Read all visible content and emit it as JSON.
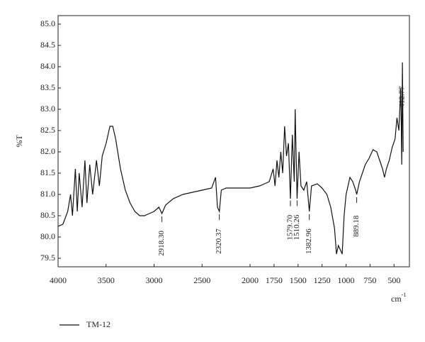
{
  "chart_data": {
    "type": "line",
    "xlabel": "cm",
    "xlabel_sup": "-1",
    "ylabel": "%T",
    "xlim": [
      4000,
      340
    ],
    "ylim": [
      79.3,
      85.2
    ],
    "xticks": [
      4000,
      3500,
      3000,
      2500,
      2000,
      1750,
      1500,
      1250,
      1000,
      750,
      500
    ],
    "yticks": [
      79.5,
      {
        "value": 80,
        "label": "80.0"
      },
      80.5,
      {
        "value": 81,
        "label": "81.0"
      },
      81.5,
      {
        "value": 82,
        "label": "82.0"
      },
      82.5,
      {
        "value": 83,
        "label": "83.0"
      },
      83.5,
      {
        "value": 84,
        "label": "84.0"
      },
      84.5,
      {
        "value": 85,
        "label": "85.0"
      }
    ],
    "annotations": [
      "2918.30",
      "2320.37",
      "1579.70",
      "1510.26",
      "1382.96",
      "889.18",
      "412.77"
    ],
    "series": [
      {
        "name": "TM-12",
        "color": "#111111",
        "x": [
          4000,
          3950,
          3900,
          3870,
          3850,
          3820,
          3800,
          3780,
          3750,
          3720,
          3700,
          3670,
          3640,
          3600,
          3570,
          3540,
          3500,
          3460,
          3430,
          3400,
          3350,
          3300,
          3250,
          3200,
          3150,
          3100,
          3050,
          3000,
          2950,
          2918,
          2880,
          2800,
          2700,
          2600,
          2500,
          2400,
          2360,
          2340,
          2320,
          2300,
          2250,
          2200,
          2100,
          2000,
          1900,
          1850,
          1800,
          1760,
          1740,
          1720,
          1700,
          1680,
          1660,
          1640,
          1620,
          1600,
          1580,
          1560,
          1540,
          1530,
          1510,
          1490,
          1470,
          1440,
          1410,
          1383,
          1360,
          1300,
          1250,
          1200,
          1160,
          1120,
          1100,
          1080,
          1060,
          1040,
          1020,
          1000,
          960,
          930,
          900,
          889,
          860,
          800,
          760,
          720,
          680,
          650,
          620,
          600,
          580,
          550,
          520,
          490,
          470,
          450,
          430,
          420,
          413,
          405
        ],
        "values": [
          80.25,
          80.3,
          80.6,
          81.0,
          80.5,
          81.6,
          80.6,
          81.5,
          80.7,
          81.8,
          80.8,
          81.7,
          81.0,
          81.8,
          81.2,
          81.9,
          82.2,
          82.6,
          82.6,
          82.3,
          81.6,
          81.1,
          80.8,
          80.6,
          80.5,
          80.5,
          80.55,
          80.6,
          80.7,
          80.55,
          80.75,
          80.9,
          81.0,
          81.05,
          81.1,
          81.15,
          81.4,
          80.7,
          80.6,
          81.1,
          81.15,
          81.15,
          81.15,
          81.15,
          81.2,
          81.25,
          81.3,
          81.6,
          81.2,
          81.8,
          81.4,
          82.0,
          81.5,
          82.6,
          81.9,
          82.2,
          80.9,
          82.4,
          81.3,
          83.0,
          80.9,
          82.0,
          81.2,
          81.1,
          81.3,
          80.6,
          81.2,
          81.25,
          81.15,
          81.0,
          80.7,
          80.2,
          79.6,
          79.8,
          79.7,
          79.6,
          80.5,
          81.0,
          81.4,
          81.3,
          81.1,
          81.0,
          81.3,
          81.7,
          81.85,
          82.05,
          82.0,
          81.8,
          81.6,
          81.4,
          81.6,
          81.8,
          82.1,
          82.3,
          82.8,
          82.5,
          83.5,
          81.7,
          84.1,
          82.0
        ]
      }
    ]
  }
}
